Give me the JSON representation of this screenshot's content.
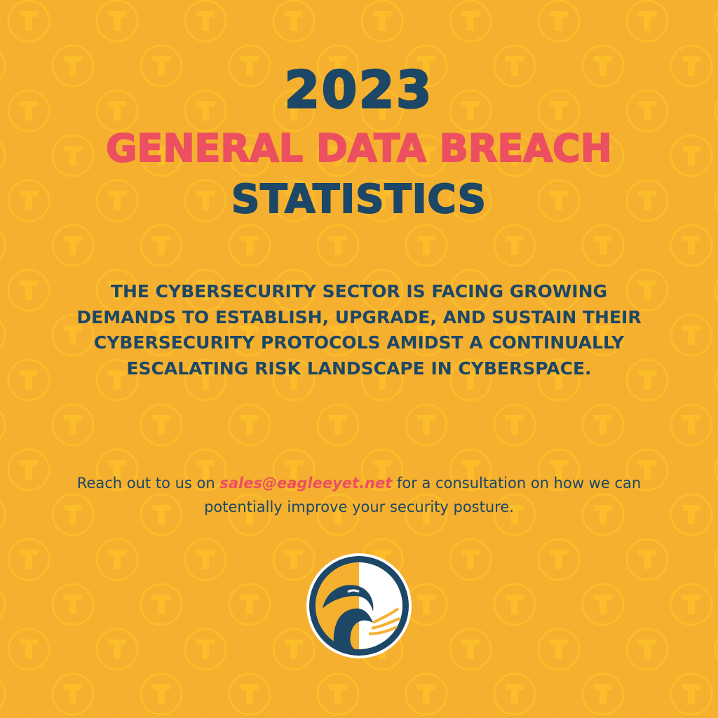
{
  "background_color": "#f5b030",
  "pattern_icon": "t-coin-icon",
  "headline": {
    "year": "2023",
    "line2": "GENERAL DATA BREACH",
    "line3": "STATISTICS"
  },
  "colors": {
    "navy": "#1c4766",
    "pink": "#ec4f5f"
  },
  "body_text": "The cybersecurity sector is facing growing demands to establish, upgrade, and sustain their cybersecurity protocols amidst a continually escalating risk landscape in cyberspace.",
  "contact": {
    "prefix": "Reach out to us on ",
    "email": "sales@eagleeyet.net",
    "suffix": " for a consultation on how we can potentially improve your security posture."
  },
  "logo": "eagle-logo-icon"
}
